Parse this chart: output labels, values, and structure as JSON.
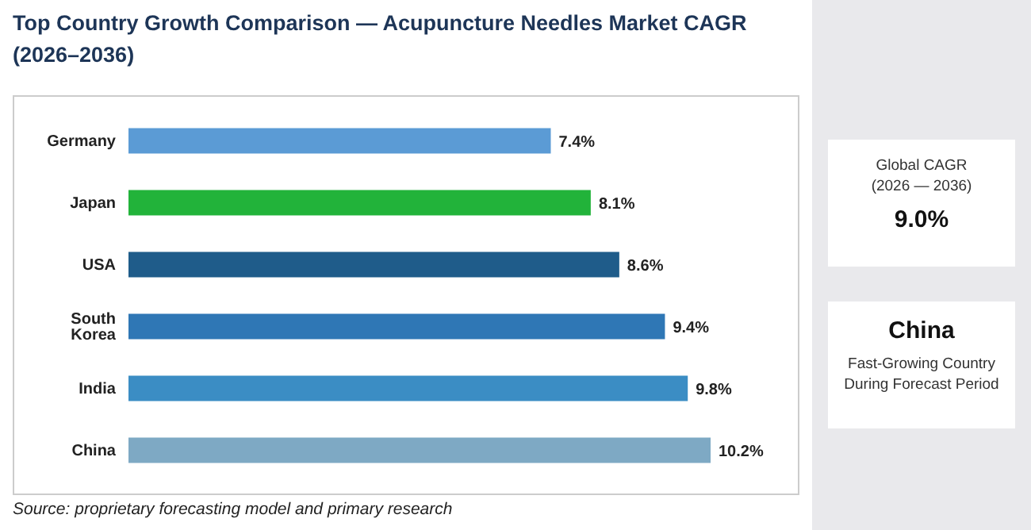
{
  "chart_data": {
    "type": "bar",
    "orientation": "horizontal",
    "title": "Top Country Growth Comparison — Acupuncture Needles Market CAGR (2026–2036)",
    "categories": [
      "Germany",
      "Japan",
      "USA",
      "South Korea",
      "India",
      "China"
    ],
    "values": [
      7.4,
      8.1,
      8.6,
      9.4,
      9.8,
      10.2
    ],
    "value_labels": [
      "7.4%",
      "8.1%",
      "8.6%",
      "9.4%",
      "9.8%",
      "10.2%"
    ],
    "colors": [
      "#5b9bd5",
      "#22b33a",
      "#1f5c8a",
      "#2f77b5",
      "#3b8dc4",
      "#7ea9c4"
    ],
    "annotations": [
      "Source: proprietary forecasting model and primary research",
      "Global CAGR\n(2026 — 2036)",
      "9.0%",
      "China",
      "Fast-Growing Country\nDuring Forecast Period"
    ]
  }
}
